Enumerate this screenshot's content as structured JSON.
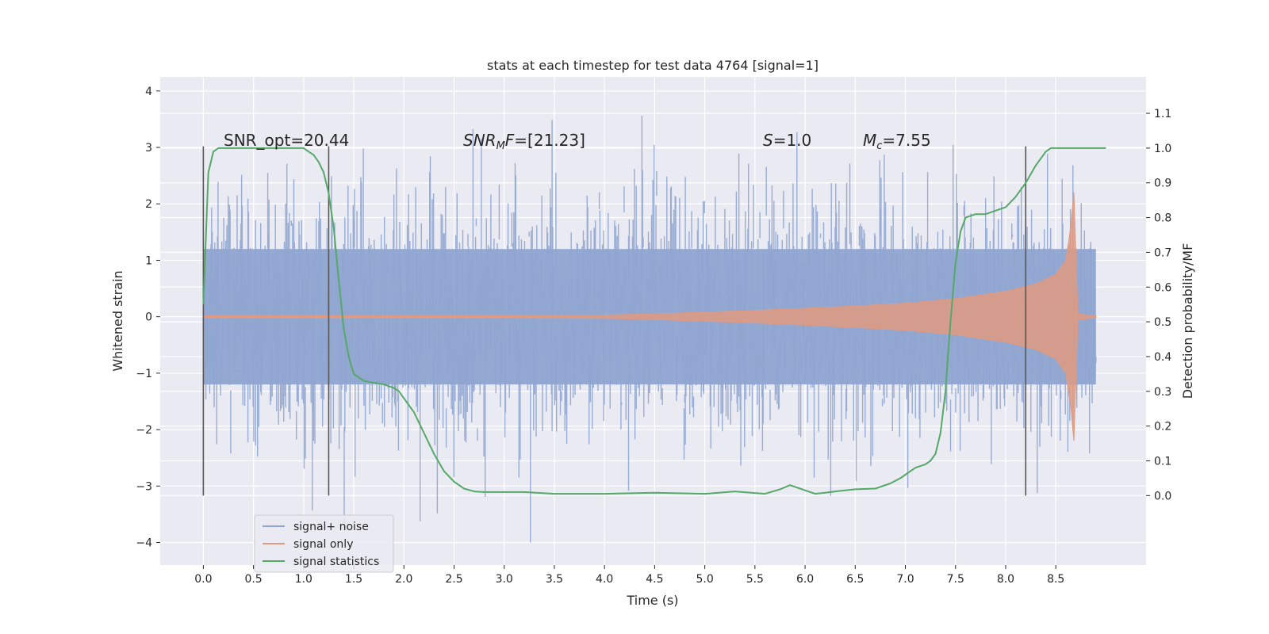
{
  "chart_data": {
    "type": "line",
    "title": "stats at each timestep for test data 4764 [signal=1]",
    "xlabel": "Time (s)",
    "ylabel": "Whitened strain",
    "y2label": "Detection probability/MF",
    "xlim": [
      -0.43,
      9.4
    ],
    "ylim": [
      -4.4,
      4.25
    ],
    "y2lim": [
      -0.2,
      1.205
    ],
    "x_ticks": [
      "0.0",
      "0.5",
      "1.0",
      "1.5",
      "2.0",
      "2.5",
      "3.0",
      "3.5",
      "4.0",
      "4.5",
      "5.0",
      "5.5",
      "6.0",
      "6.5",
      "7.0",
      "7.5",
      "8.0",
      "8.5"
    ],
    "y_ticks": [
      "4",
      "3",
      "2",
      "1",
      "0",
      "−1",
      "−2",
      "−3",
      "−4"
    ],
    "y2_ticks": [
      "1.1",
      "1.0",
      "0.9",
      "0.8",
      "0.7",
      "0.6",
      "0.5",
      "0.4",
      "0.3",
      "0.2",
      "0.1",
      "0.0"
    ],
    "grid": true,
    "legend_position": "lower-left",
    "annotations": {
      "snr_opt": "SNR_opt=20.44",
      "snr_mf_main": "SNR",
      "snr_mf_sub": "M",
      "snr_mf_rest": "F=[21.23]",
      "s_main": "S",
      "s_rest": "=1.0",
      "mc_main": "M",
      "mc_sub": "c",
      "mc_rest": "=7.55"
    },
    "series": [
      {
        "name": "signal+ noise",
        "color": "#8fa5d0",
        "x_range": [
          0.0,
          8.9
        ],
        "envelope_approx": {
          "core_amplitude": 1.2,
          "peak_max": 3.9,
          "peak_min": -4.0
        }
      },
      {
        "name": "signal only",
        "color": "#e09a80",
        "envelope": {
          "t": [
            0.0,
            2.0,
            3.0,
            4.0,
            4.5,
            5.0,
            5.5,
            6.0,
            6.5,
            7.0,
            7.5,
            8.0,
            8.3,
            8.5,
            8.6,
            8.65,
            8.68,
            8.72,
            8.9
          ],
          "amp": [
            0.02,
            0.02,
            0.02,
            0.03,
            0.05,
            0.08,
            0.11,
            0.15,
            0.19,
            0.24,
            0.32,
            0.45,
            0.58,
            0.75,
            1.0,
            1.6,
            2.2,
            0.05,
            0.02
          ]
        }
      },
      {
        "name": "signal statistics",
        "color": "#55a868",
        "axis": "right",
        "x": [
          0.0,
          0.05,
          0.1,
          0.15,
          0.3,
          0.5,
          0.8,
          1.0,
          1.05,
          1.1,
          1.15,
          1.2,
          1.25,
          1.3,
          1.35,
          1.4,
          1.45,
          1.5,
          1.6,
          1.7,
          1.8,
          1.9,
          1.95,
          2.0,
          2.1,
          2.2,
          2.3,
          2.4,
          2.5,
          2.6,
          2.7,
          2.8,
          3.0,
          3.2,
          3.5,
          4.0,
          4.5,
          5.0,
          5.3,
          5.6,
          5.75,
          5.85,
          5.95,
          6.1,
          6.2,
          6.3,
          6.5,
          6.7,
          6.85,
          6.95,
          7.0,
          7.1,
          7.2,
          7.25,
          7.3,
          7.35,
          7.4,
          7.45,
          7.5,
          7.55,
          7.6,
          7.7,
          7.8,
          7.9,
          8.0,
          8.1,
          8.2,
          8.3,
          8.4,
          8.45,
          8.5,
          9.0
        ],
        "y": [
          0.55,
          0.93,
          0.99,
          1.0,
          1.0,
          1.0,
          1.0,
          1.0,
          0.99,
          0.98,
          0.96,
          0.93,
          0.87,
          0.77,
          0.62,
          0.48,
          0.4,
          0.35,
          0.33,
          0.325,
          0.32,
          0.31,
          0.3,
          0.28,
          0.24,
          0.18,
          0.12,
          0.07,
          0.04,
          0.02,
          0.012,
          0.01,
          0.01,
          0.01,
          0.005,
          0.005,
          0.008,
          0.005,
          0.012,
          0.005,
          0.018,
          0.03,
          0.02,
          0.005,
          0.008,
          0.012,
          0.018,
          0.02,
          0.035,
          0.05,
          0.06,
          0.08,
          0.09,
          0.1,
          0.12,
          0.18,
          0.3,
          0.5,
          0.67,
          0.76,
          0.8,
          0.81,
          0.81,
          0.82,
          0.83,
          0.86,
          0.9,
          0.95,
          0.99,
          1.0,
          1.0,
          1.0
        ]
      }
    ],
    "vertical_markers_x": [
      0.0,
      1.25,
      8.2
    ]
  }
}
